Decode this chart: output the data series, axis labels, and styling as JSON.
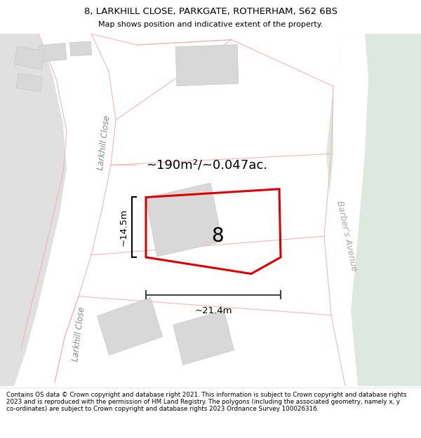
{
  "title_line1": "8, LARKHILL CLOSE, PARKGATE, ROTHERHAM, S62 6BS",
  "title_line2": "Map shows position and indicative extent of the property.",
  "footer": "Contains OS data © Crown copyright and database right 2021. This information is subject to Crown copyright and database rights 2023 and is reproduced with the permission of HM Land Registry. The polygons (including the associated geometry, namely x, y co-ordinates) are subject to Crown copyright and database rights 2023 Ordnance Survey 100026316.",
  "property_color": "#dd0000",
  "property_label": "8",
  "area_text": "~190m²/~0.047ac.",
  "dim_h": "~14.5m",
  "dim_w": "~21.4m",
  "street_left_upper": "Larkhill Close",
  "street_left_lower": "Larkhill Close",
  "street_right": "Barber's Avenue",
  "road_line_color": "#f0b0b0",
  "bldg_fill": "#d8d8d8",
  "bldg_edge": "#c8c8c8",
  "road_fill_gray": "#e8e8e8",
  "road_fill_right": "#dde8e0"
}
